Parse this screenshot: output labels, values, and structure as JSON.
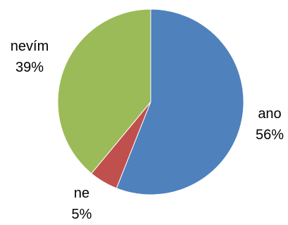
{
  "chart_data": {
    "type": "pie",
    "start": "top",
    "direction": "clockwise",
    "slices": [
      {
        "category": "ano",
        "value": 56,
        "label": "56%",
        "color": "#4F81BD"
      },
      {
        "category": "ne",
        "value": 5,
        "label": "5%",
        "color": "#C0504D"
      },
      {
        "category": "nevím",
        "value": 39,
        "label": "39%",
        "color": "#9BBB59"
      }
    ],
    "legend": "none"
  }
}
